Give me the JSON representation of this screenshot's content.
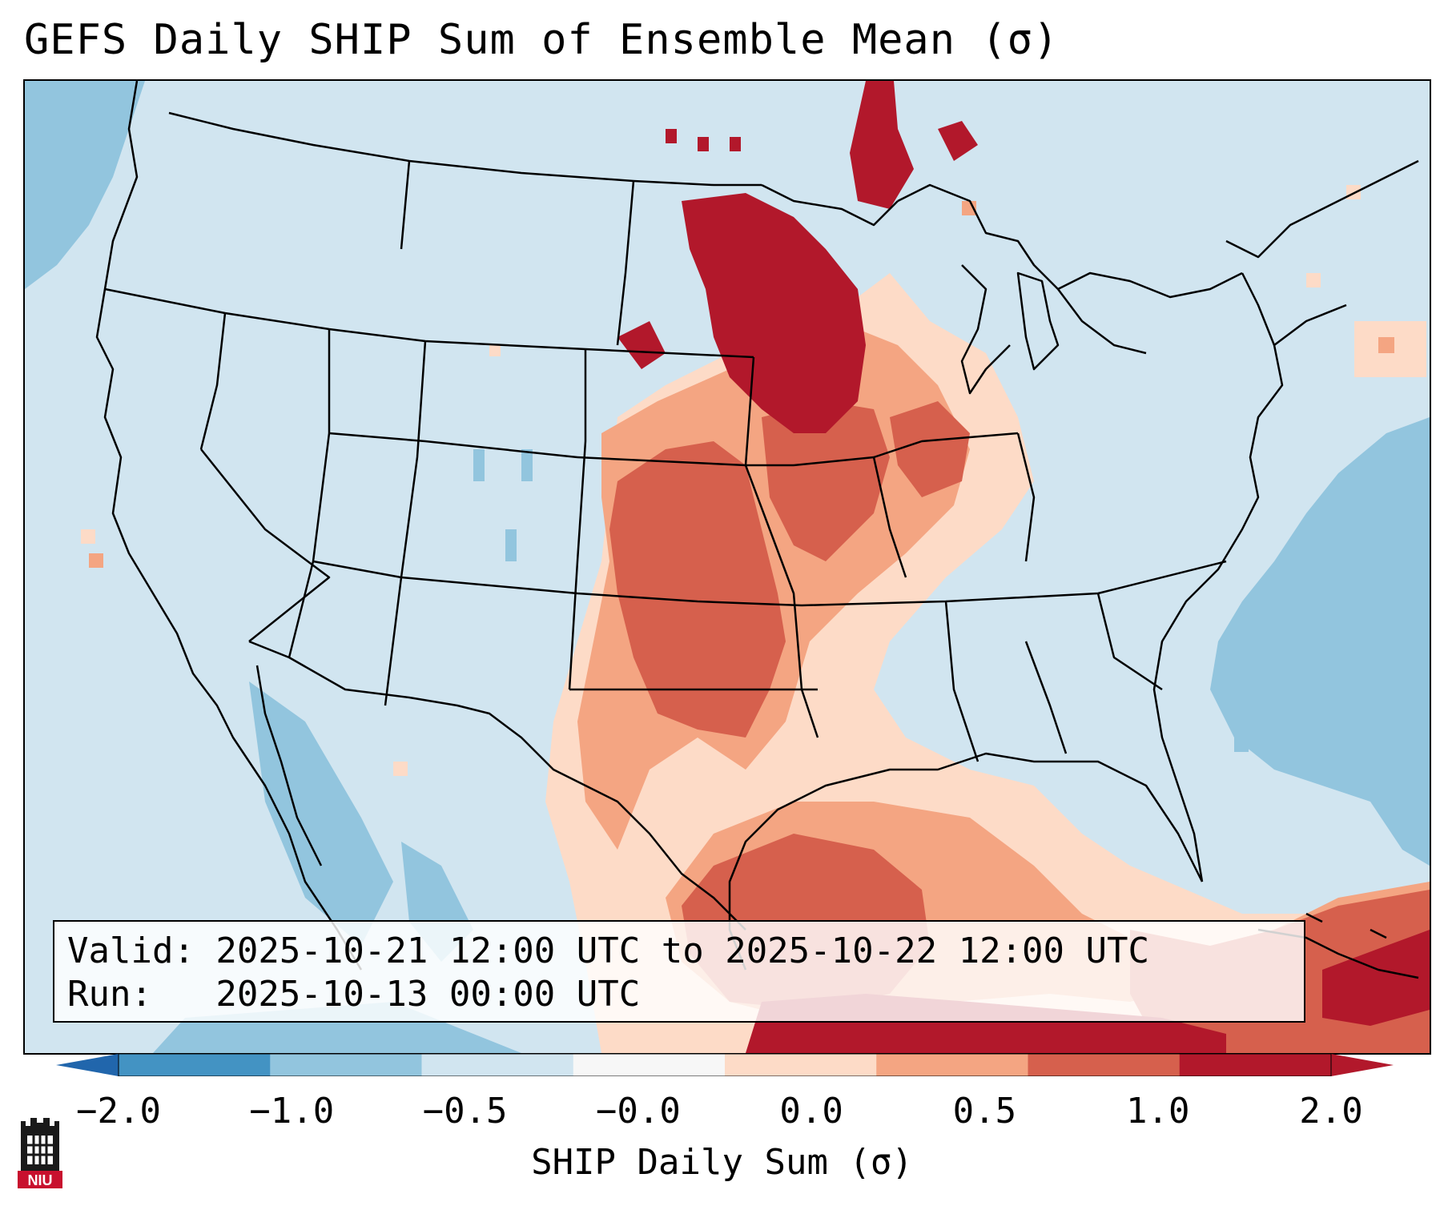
{
  "title": "GEFS Daily SHIP Sum of Ensemble Mean (σ)",
  "valid_line": "Valid: 2025-10-21 12:00 UTC to 2025-10-22 12:00 UTC",
  "run_line": "Run:   2025-10-13 00:00 UTC",
  "colorbar": {
    "label": "SHIP Daily Sum (σ)",
    "ticks": [
      "−2.0",
      "−1.0",
      "−0.5",
      "−0.0",
      "0.0",
      "0.5",
      "1.0",
      "2.0"
    ],
    "colors": [
      "#4393c3",
      "#92c5de",
      "#d1e5f0",
      "#f7f7f7",
      "#fddbc7",
      "#f4a582",
      "#d6604d",
      "#b2182b"
    ],
    "extend_low_color": "#2166ac",
    "extend_high_color": "#b2182b"
  },
  "logo": {
    "text": "NIU",
    "color": "#c8102e"
  }
}
